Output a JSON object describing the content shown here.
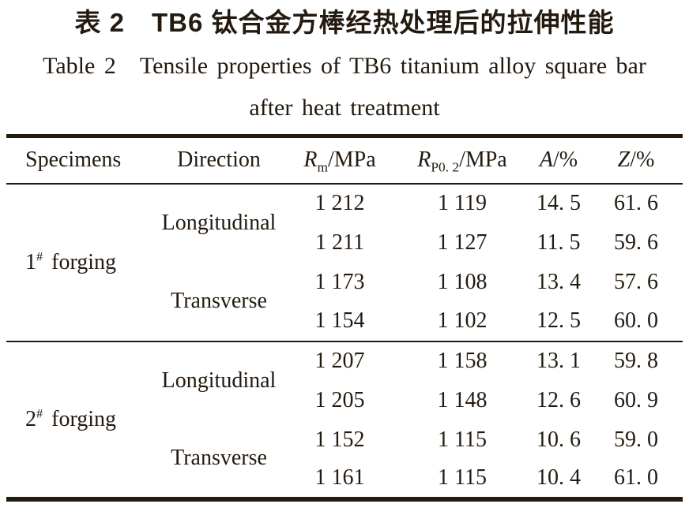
{
  "colors": {
    "ink": "#241a10",
    "background": "#ffffff"
  },
  "titles": {
    "zh": "表 2　TB6 钛合金方棒经热处理后的拉伸性能",
    "en_line1": "Table 2 Tensile properties of TB6 titanium alloy square bar",
    "en_line2": "after heat treatment"
  },
  "table": {
    "columns": {
      "specimens": "Specimens",
      "direction": "Direction",
      "rm": {
        "symbol": "R",
        "sub": "m",
        "unit": "/MPa"
      },
      "rp": {
        "symbol": "R",
        "sub": "P0. 2",
        "unit": "/MPa"
      },
      "a": {
        "symbol": "A",
        "unit": "/%"
      },
      "z": {
        "symbol": "Z",
        "unit": "/%"
      }
    },
    "blocks": [
      {
        "specimen": {
          "num": "1",
          "sup": "#",
          "word": "forging"
        },
        "groups": [
          {
            "direction": "Longitudinal",
            "rows": [
              [
                "1 212",
                "1 119",
                "14. 5",
                "61. 6"
              ],
              [
                "1 211",
                "1 127",
                "11. 5",
                "59. 6"
              ]
            ]
          },
          {
            "direction": "Transverse",
            "rows": [
              [
                "1 173",
                "1 108",
                "13. 4",
                "57. 6"
              ],
              [
                "1 154",
                "1 102",
                "12. 5",
                "60. 0"
              ]
            ]
          }
        ]
      },
      {
        "specimen": {
          "num": "2",
          "sup": "#",
          "word": "forging"
        },
        "groups": [
          {
            "direction": "Longitudinal",
            "rows": [
              [
                "1 207",
                "1 158",
                "13. 1",
                "59. 8"
              ],
              [
                "1 205",
                "1 148",
                "12. 6",
                "60. 9"
              ]
            ]
          },
          {
            "direction": "Transverse",
            "rows": [
              [
                "1 152",
                "1 115",
                "10. 6",
                "59. 0"
              ],
              [
                "1 161",
                "1 115",
                "10. 4",
                "61. 0"
              ]
            ]
          }
        ]
      }
    ]
  }
}
